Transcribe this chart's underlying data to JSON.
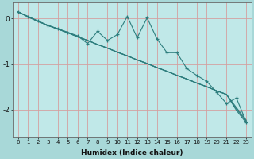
{
  "xlabel": "Humidex (Indice chaleur)",
  "ylabel": "",
  "bg_color": "#a8d8d8",
  "plot_bg_color": "#c0e8e8",
  "line_color": "#2d7d7d",
  "grid_color": "#d4a0a0",
  "x": [
    0,
    1,
    2,
    3,
    4,
    5,
    6,
    7,
    8,
    9,
    10,
    11,
    12,
    13,
    14,
    15,
    16,
    17,
    18,
    19,
    20,
    21,
    22,
    23
  ],
  "noisy": [
    0.15,
    0.05,
    -0.05,
    -0.15,
    -0.22,
    -0.3,
    -0.38,
    -0.55,
    -0.28,
    -0.48,
    -0.35,
    0.05,
    -0.42,
    0.02,
    -0.45,
    -0.75,
    -0.75,
    -1.1,
    -1.25,
    -1.38,
    -1.62,
    -1.87,
    -1.75,
    -2.28
  ],
  "smooth1": [
    0.15,
    0.04,
    -0.06,
    -0.15,
    -0.23,
    -0.31,
    -0.4,
    -0.48,
    -0.57,
    -0.65,
    -0.74,
    -0.82,
    -0.91,
    -0.99,
    -1.08,
    -1.16,
    -1.25,
    -1.33,
    -1.42,
    -1.5,
    -1.59,
    -1.67,
    -1.96,
    -2.24
  ],
  "smooth2": [
    0.15,
    0.04,
    -0.06,
    -0.15,
    -0.23,
    -0.31,
    -0.4,
    -0.48,
    -0.57,
    -0.65,
    -0.74,
    -0.82,
    -0.91,
    -0.99,
    -1.08,
    -1.16,
    -1.25,
    -1.33,
    -1.42,
    -1.5,
    -1.59,
    -1.67,
    -1.99,
    -2.27
  ],
  "smooth3": [
    0.15,
    0.04,
    -0.06,
    -0.15,
    -0.23,
    -0.31,
    -0.4,
    -0.48,
    -0.57,
    -0.65,
    -0.74,
    -0.82,
    -0.91,
    -0.99,
    -1.08,
    -1.16,
    -1.25,
    -1.33,
    -1.42,
    -1.5,
    -1.59,
    -1.67,
    -2.02,
    -2.3
  ],
  "ylim": [
    -2.6,
    0.35
  ],
  "xlim": [
    -0.5,
    23.5
  ],
  "yticks": [
    0,
    -1,
    -2
  ],
  "xticks": [
    0,
    1,
    2,
    3,
    4,
    5,
    6,
    7,
    8,
    9,
    10,
    11,
    12,
    13,
    14,
    15,
    16,
    17,
    18,
    19,
    20,
    21,
    22,
    23
  ]
}
